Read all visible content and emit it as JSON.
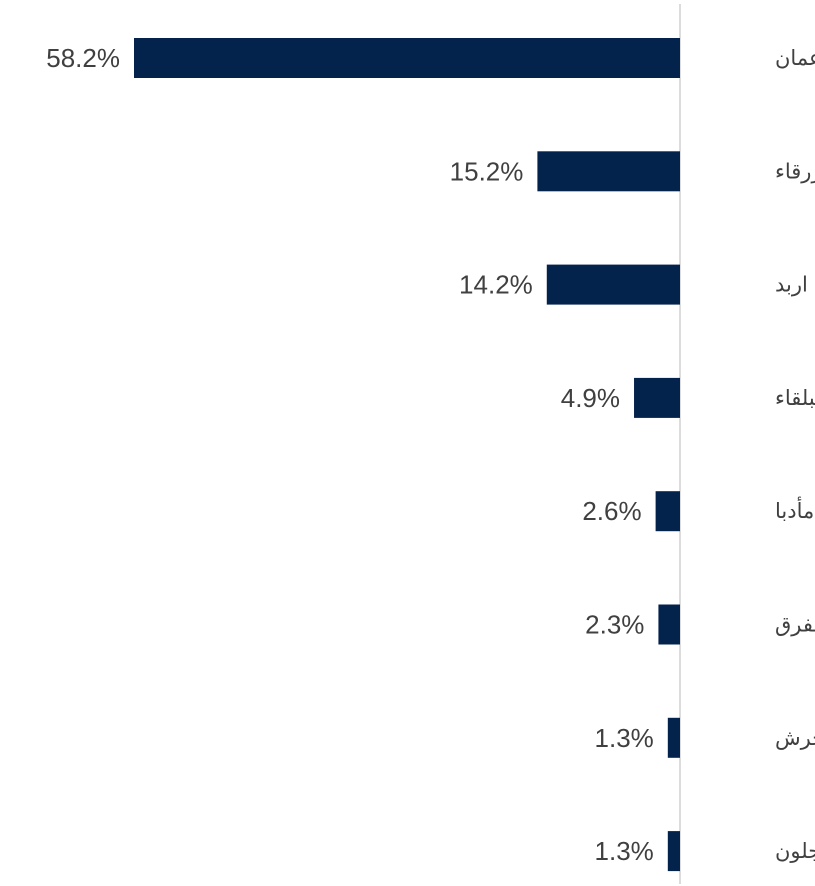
{
  "colors": {
    "bar": "#03224C",
    "axis": "#d0d0d0",
    "text": "#404040",
    "background": "#ffffff"
  },
  "chart_data": {
    "type": "bar",
    "orientation": "horizontal",
    "direction": "right-to-left",
    "categories": [
      "عمان",
      "الزرقاء",
      "اربد",
      "البلقاء",
      "مأدبا",
      "المفرق",
      "جرش",
      "عجلون"
    ],
    "values": [
      58.2,
      15.2,
      14.2,
      4.9,
      2.6,
      2.3,
      1.3,
      1.3
    ],
    "value_labels": [
      "58.2%",
      "15.2%",
      "14.2%",
      "4.9%",
      "2.6%",
      "2.3%",
      "1.3%",
      "1.3%"
    ],
    "unit": "%",
    "title": "",
    "xlabel": "",
    "ylabel": "",
    "xlim": [
      0,
      58.2
    ],
    "grid": false,
    "legend": "none"
  }
}
